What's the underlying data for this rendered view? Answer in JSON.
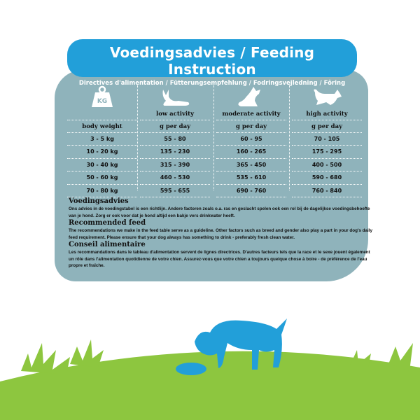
{
  "title": "Voedingsadvies / Feeding Instruction",
  "subtitle": "Directives d'alimentation / Fütterungsempfehlung / Fodringsvejledning / Fôring",
  "table": {
    "columns": [
      {
        "icon": "kg-weight-icon",
        "label": "",
        "unit": "body weight",
        "values": [
          "3 - 5 kg",
          "10 - 20 kg",
          "30 - 40 kg",
          "50 - 60 kg",
          "70 - 80 kg"
        ]
      },
      {
        "icon": "lying-dog-icon",
        "label": "low activity",
        "unit": "g per day",
        "values": [
          "55 - 80",
          "135 - 230",
          "315 - 390",
          "460 - 530",
          "595 - 655"
        ]
      },
      {
        "icon": "sitting-dog-icon",
        "label": "moderate activity",
        "unit": "g per day",
        "values": [
          "60 - 95",
          "160 - 265",
          "365 - 450",
          "535 - 610",
          "690 - 760"
        ]
      },
      {
        "icon": "running-dog-icon",
        "label": "high activity",
        "unit": "g per day",
        "values": [
          "70 - 105",
          "175 - 295",
          "400 - 500",
          "590 - 680",
          "760 - 840"
        ]
      }
    ]
  },
  "kg_label": "KG",
  "sections": [
    {
      "heading": "Voedingsadvies",
      "body": "Ons advies in de voedingstabel is een richtlijn. Andere factoren zoals o.a. ras en geslacht spelen ook een rol bij de dagelijkse voedingsbehoefte van je hond. Zorg er ook voor dat je hond altijd een bakje vers drinkwater heeft."
    },
    {
      "heading": "Recommended feed",
      "body": "The recommendations we make in the feed table serve as a guideline. Other factors such as breed and gender also play a part in your dog's daily feed requirement. Please ensure that your dog always has something to drink - preferably fresh clean water."
    },
    {
      "heading": "Conseil alimentaire",
      "body": "Les recommandations dans le tableau d'alimentation servent de lignes directrices. D'autres facteurs tels que la race et le sexe jouent également un rôle dans l'alimentation quotidienne de votre chien. Assurez-vous que votre chien a toujours quelque chose à boire - de préférence de l'eau propre et fraîche."
    }
  ],
  "colors": {
    "banner": "#229fd9",
    "panel": "#8fb3bb",
    "grass": "#8dc63f",
    "dog": "#229fd9"
  }
}
